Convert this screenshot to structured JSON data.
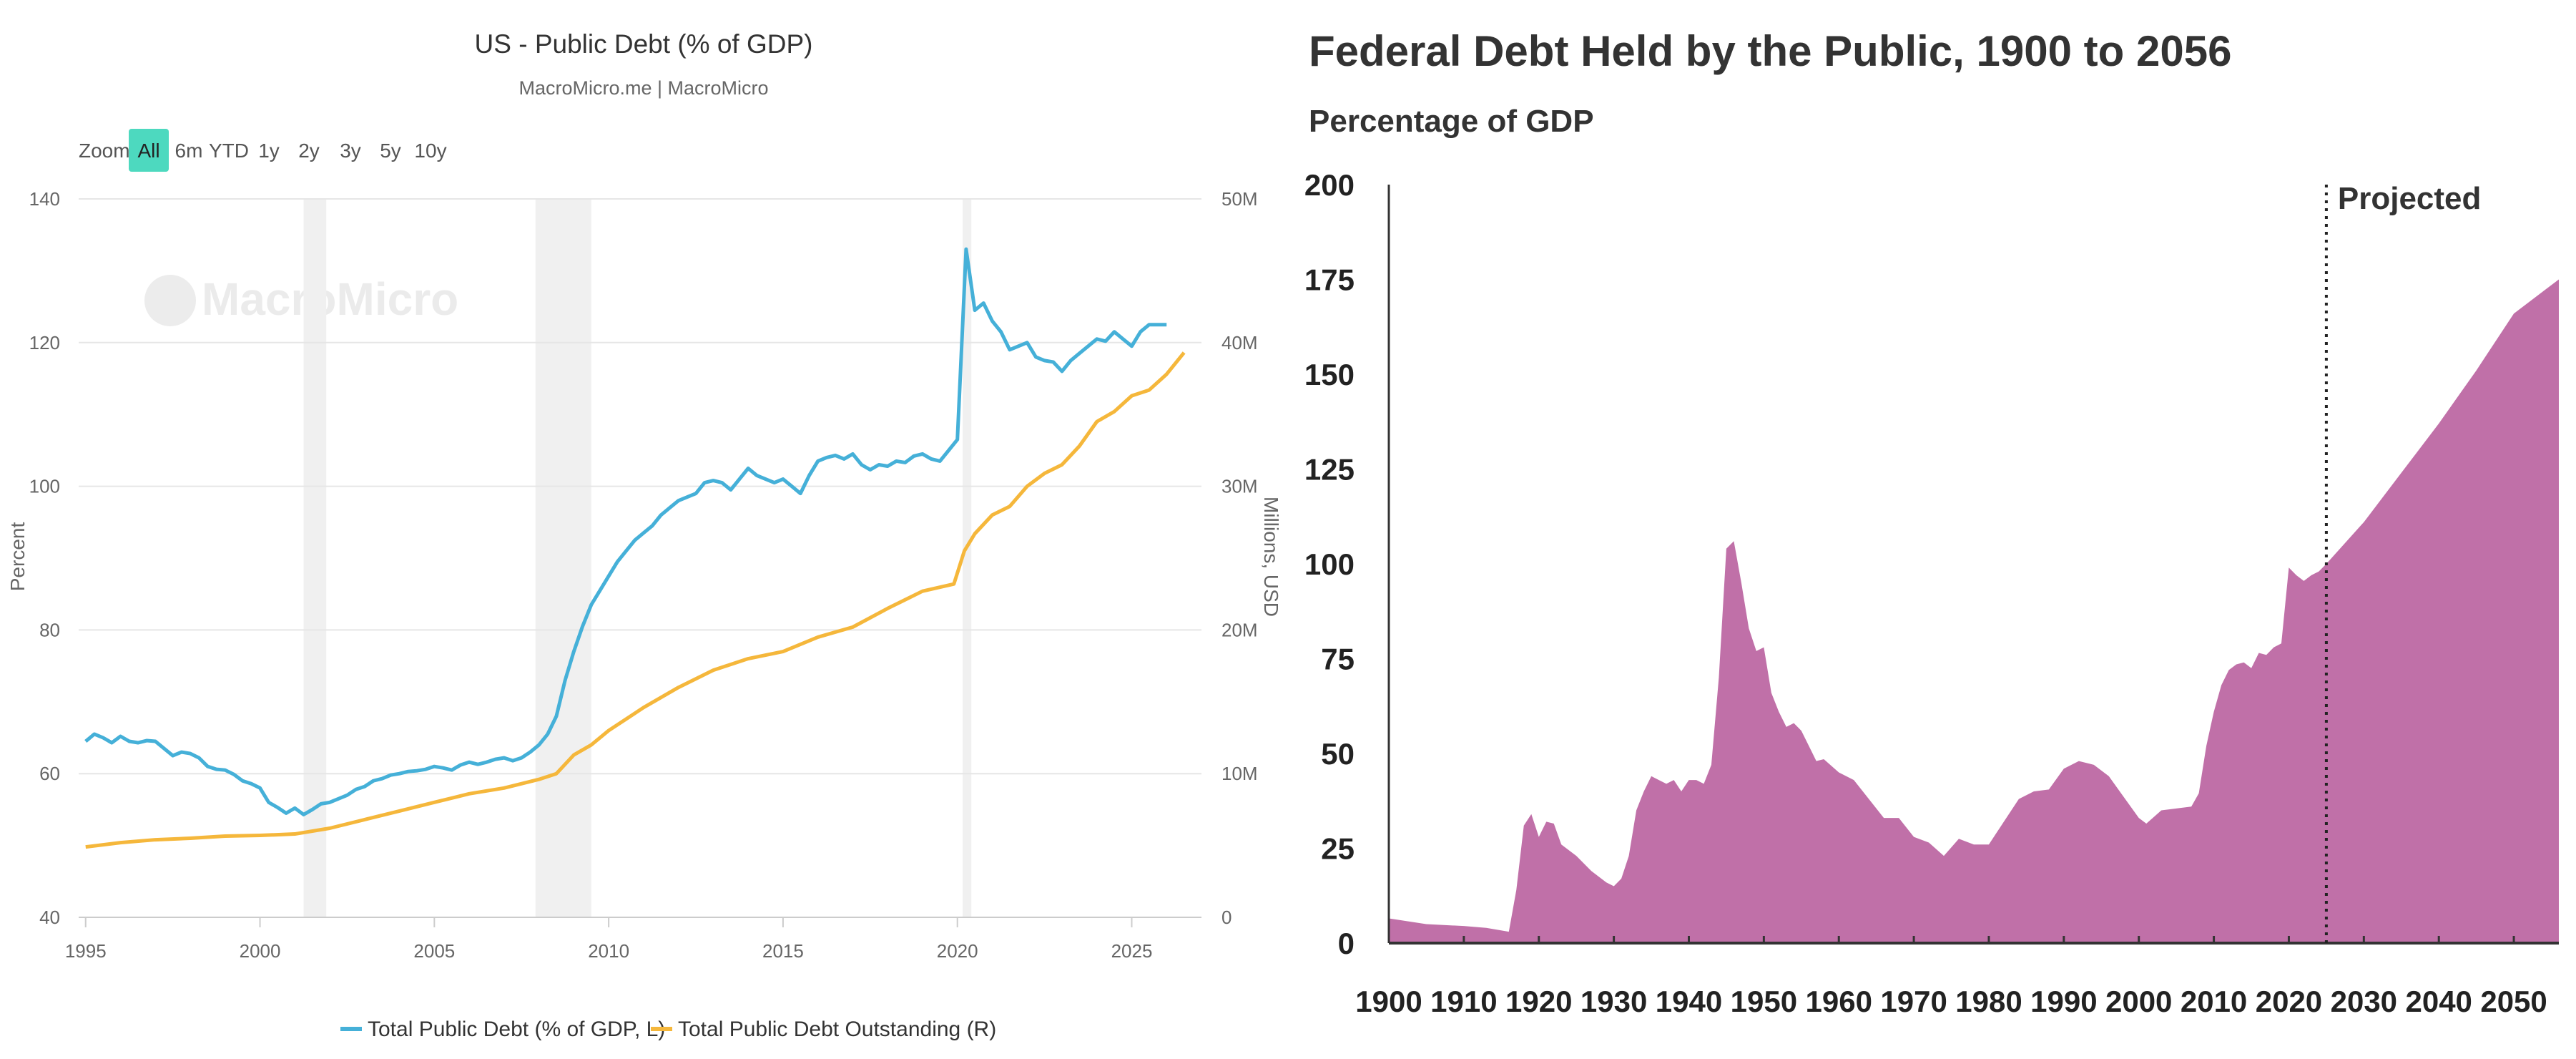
{
  "left": {
    "title": "US - Public Debt (% of GDP)",
    "subtitle": "MacroMicro.me | MacroMicro",
    "watermark": "MacroMicro",
    "zoom_label": "Zoom",
    "zoom_buttons": [
      "All",
      "6m",
      "YTD",
      "1y",
      "2y",
      "3y",
      "5y",
      "10y"
    ],
    "zoom_selected": "All",
    "ylabel_left": "Percent",
    "ylabel_right": "Millions, USD",
    "legend": [
      "Total Public Debt (% of GDP, L)",
      "Total Public Debt Outstanding (R)"
    ],
    "colors": {
      "gdp": "#45b0d8",
      "outstanding": "#f5b73b",
      "zoom_active": "#4dd9bf",
      "recession": "#f0f0f0"
    }
  },
  "right": {
    "title": "Federal Debt Held by the Public, 1900 to 2056",
    "subtitle": "Percentage of GDP",
    "annotation": "Projected",
    "colors": {
      "area": "#c070a8"
    }
  },
  "chart_data": [
    {
      "type": "line",
      "title": "US - Public Debt (% of GDP)",
      "subtitle": "MacroMicro.me | MacroMicro",
      "ylabel": "Percent",
      "y2label": "Millions, USD",
      "xlim": [
        1994.8,
        2027.0
      ],
      "ylim": [
        40,
        140
      ],
      "y2lim": [
        0,
        50000000
      ],
      "xticks": [
        1995,
        2000,
        2005,
        2010,
        2015,
        2020,
        2025
      ],
      "xtick_labels": [
        "1995",
        "2000",
        "2005",
        "2010",
        "2015",
        "2020",
        "2025"
      ],
      "yticks": [
        40,
        60,
        80,
        100,
        120,
        140
      ],
      "ytick_labels": [
        "40",
        "60",
        "80",
        "100",
        "120",
        "140"
      ],
      "y2ticks": [
        0,
        10000000,
        20000000,
        30000000,
        40000000,
        50000000
      ],
      "y2tick_labels": [
        "0",
        "10M",
        "20M",
        "30M",
        "40M",
        "50M"
      ],
      "recession_bands": [
        [
          2001.25,
          2001.9
        ],
        [
          2007.9,
          2009.5
        ],
        [
          2020.15,
          2020.4
        ]
      ],
      "legend_position": "bottom",
      "grid": true,
      "series": [
        {
          "name": "Total Public Debt (% of GDP, L)",
          "axis": "left",
          "x": [
            1995.0,
            1995.25,
            1995.5,
            1995.75,
            1996.0,
            1996.25,
            1996.5,
            1996.75,
            1997.0,
            1997.25,
            1997.5,
            1997.75,
            1998.0,
            1998.25,
            1998.5,
            1998.75,
            1999.0,
            1999.25,
            1999.5,
            1999.75,
            2000.0,
            2000.25,
            2000.5,
            2000.75,
            2001.0,
            2001.25,
            2001.5,
            2001.75,
            2002.0,
            2002.25,
            2002.5,
            2002.75,
            2003.0,
            2003.25,
            2003.5,
            2003.75,
            2004.0,
            2004.25,
            2004.5,
            2004.75,
            2005.0,
            2005.25,
            2005.5,
            2005.75,
            2006.0,
            2006.25,
            2006.5,
            2006.75,
            2007.0,
            2007.25,
            2007.5,
            2007.75,
            2008.0,
            2008.25,
            2008.5,
            2008.75,
            2009.0,
            2009.25,
            2009.5,
            2009.75,
            2010.0,
            2010.25,
            2010.5,
            2010.75,
            2011.0,
            2011.25,
            2011.5,
            2011.75,
            2012.0,
            2012.25,
            2012.5,
            2012.75,
            2013.0,
            2013.25,
            2013.5,
            2013.75,
            2014.0,
            2014.25,
            2014.5,
            2014.75,
            2015.0,
            2015.25,
            2015.5,
            2015.75,
            2016.0,
            2016.25,
            2016.5,
            2016.75,
            2017.0,
            2017.25,
            2017.5,
            2017.75,
            2018.0,
            2018.25,
            2018.5,
            2018.75,
            2019.0,
            2019.25,
            2019.5,
            2019.75,
            2020.0,
            2020.25,
            2020.5,
            2020.75,
            2021.0,
            2021.25,
            2021.5,
            2021.75,
            2022.0,
            2022.25,
            2022.5,
            2022.75,
            2023.0,
            2023.25,
            2023.5,
            2023.75,
            2024.0,
            2024.25,
            2024.5,
            2024.75,
            2025.0,
            2025.25,
            2025.5,
            2025.75,
            2026.0
          ],
          "y": [
            64.5,
            65.5,
            65.0,
            64.3,
            65.2,
            64.5,
            64.3,
            64.6,
            64.5,
            63.5,
            62.5,
            63.0,
            62.8,
            62.2,
            61.0,
            60.6,
            60.5,
            59.9,
            59.0,
            58.6,
            58.0,
            56.0,
            55.3,
            54.5,
            55.2,
            54.3,
            55.0,
            55.8,
            56.0,
            56.5,
            57.0,
            57.8,
            58.2,
            59.0,
            59.3,
            59.8,
            60.0,
            60.3,
            60.4,
            60.6,
            61.0,
            60.8,
            60.5,
            61.2,
            61.6,
            61.3,
            61.6,
            62.0,
            62.2,
            61.8,
            62.2,
            63.0,
            64.0,
            65.5,
            68.0,
            73.0,
            77.0,
            80.5,
            83.5,
            85.5,
            87.5,
            89.5,
            91.0,
            92.5,
            93.5,
            94.5,
            96.0,
            97.0,
            98.0,
            98.5,
            99.0,
            100.5,
            100.8,
            100.5,
            99.5,
            101.0,
            102.5,
            101.5,
            101.0,
            100.5,
            101.0,
            100.0,
            99.0,
            101.5,
            103.5,
            104.0,
            104.3,
            103.8,
            104.5,
            103.0,
            102.3,
            103.0,
            102.8,
            103.5,
            103.3,
            104.2,
            104.5,
            103.8,
            103.5,
            105.0,
            106.5,
            133.0,
            124.5,
            125.5,
            123.0,
            121.5,
            119.0,
            119.5,
            120.0,
            118.0,
            117.5,
            117.3,
            116.0,
            117.5,
            118.5,
            119.5,
            120.5,
            120.2,
            121.5,
            120.5,
            119.5,
            121.5,
            122.5,
            122.5,
            122.5
          ],
          "color": "#45b0d8"
        },
        {
          "name": "Total Public Debt Outstanding (R)",
          "axis": "right",
          "x": [
            1995.0,
            1996.0,
            1997.0,
            1998.0,
            1999.0,
            2000.0,
            2001.0,
            2002.0,
            2003.0,
            2004.0,
            2005.0,
            2006.0,
            2007.0,
            2008.0,
            2008.5,
            2009.0,
            2009.5,
            2010.0,
            2011.0,
            2012.0,
            2013.0,
            2014.0,
            2015.0,
            2016.0,
            2017.0,
            2018.0,
            2019.0,
            2019.9,
            2020.2,
            2020.5,
            2021.0,
            2021.5,
            2022.0,
            2022.5,
            2023.0,
            2023.5,
            2024.0,
            2024.5,
            2025.0,
            2025.5,
            2026.0,
            2026.5
          ],
          "y": [
            4900000,
            5200000,
            5400000,
            5500000,
            5650000,
            5700000,
            5800000,
            6200000,
            6800000,
            7400000,
            8000000,
            8600000,
            9000000,
            9600000,
            10000000,
            11300000,
            12000000,
            13000000,
            14600000,
            16000000,
            17200000,
            18000000,
            18500000,
            19500000,
            20200000,
            21500000,
            22700000,
            23200000,
            25500000,
            26700000,
            28000000,
            28600000,
            30000000,
            30900000,
            31500000,
            32800000,
            34500000,
            35200000,
            36300000,
            36700000,
            37800000,
            39300000
          ],
          "color": "#f5b73b"
        }
      ]
    },
    {
      "type": "area",
      "title": "Federal Debt Held by the Public, 1900 to 2056",
      "ylabel": "Percentage of GDP",
      "xlim": [
        1900,
        2056
      ],
      "ylim": [
        0,
        200
      ],
      "xticks": [
        1900,
        1910,
        1920,
        1930,
        1940,
        1950,
        1960,
        1970,
        1980,
        1990,
        2000,
        2010,
        2020,
        2030,
        2040,
        2050
      ],
      "xtick_labels": [
        "1900",
        "1910",
        "1920",
        "1930",
        "1940",
        "1950",
        "1960",
        "1970",
        "1980",
        "1990",
        "2000",
        "2010",
        "2020",
        "2030",
        "2040",
        "2050"
      ],
      "yticks": [
        0,
        25,
        50,
        75,
        100,
        125,
        150,
        175,
        200
      ],
      "ytick_labels": [
        "0",
        "25",
        "50",
        "75",
        "100",
        "125",
        "150",
        "175",
        "200"
      ],
      "projection_start": 2025,
      "annotations": [
        "Projected"
      ],
      "grid": false,
      "series": [
        {
          "name": "",
          "x": [
            1900,
            1905,
            1910,
            1913,
            1916,
            1917,
            1918,
            1919,
            1920,
            1921,
            1922,
            1923,
            1925,
            1927,
            1929,
            1930,
            1931,
            1932,
            1933,
            1934,
            1935,
            1936,
            1937,
            1938,
            1939,
            1940,
            1941,
            1942,
            1943,
            1944,
            1945,
            1946,
            1947,
            1948,
            1949,
            1950,
            1951,
            1952,
            1953,
            1954,
            1955,
            1956,
            1957,
            1958,
            1960,
            1962,
            1964,
            1966,
            1968,
            1970,
            1972,
            1974,
            1976,
            1978,
            1980,
            1982,
            1984,
            1986,
            1988,
            1990,
            1992,
            1994,
            1996,
            1998,
            2000,
            2001,
            2003,
            2005,
            2007,
            2008,
            2009,
            2010,
            2011,
            2012,
            2013,
            2014,
            2015,
            2016,
            2017,
            2018,
            2019,
            2020,
            2021,
            2022,
            2023,
            2024,
            2025,
            2030,
            2035,
            2040,
            2045,
            2050,
            2056
          ],
          "y": [
            6.5,
            5.0,
            4.5,
            4.0,
            3.0,
            14.0,
            31.0,
            34.0,
            28.0,
            32.0,
            31.5,
            26.0,
            23.0,
            19.0,
            16.0,
            15.0,
            17.0,
            23.0,
            35.0,
            40.0,
            44.0,
            43.0,
            42.0,
            43.0,
            40.0,
            43.0,
            43.0,
            42.0,
            47.0,
            70.0,
            104.0,
            106.0,
            95.0,
            83.0,
            77.0,
            78.0,
            66.0,
            61.0,
            57.0,
            58.0,
            56.0,
            52.0,
            48.0,
            48.5,
            45.0,
            43.0,
            38.0,
            33.0,
            33.0,
            28.0,
            26.5,
            23.0,
            27.5,
            26.0,
            26.0,
            32.0,
            38.0,
            40.0,
            40.5,
            46.0,
            48.0,
            47.0,
            44.0,
            38.5,
            33.0,
            31.5,
            35.0,
            35.5,
            36.0,
            39.5,
            52.0,
            61.0,
            68.0,
            72.0,
            73.5,
            74.0,
            72.5,
            76.5,
            76.0,
            78.0,
            79.0,
            99.0,
            97.0,
            95.5,
            97.0,
            98.0,
            100.0,
            111.0,
            124.0,
            137.0,
            151.0,
            166.0,
            175.0
          ],
          "color": "#c070a8"
        }
      ]
    }
  ]
}
